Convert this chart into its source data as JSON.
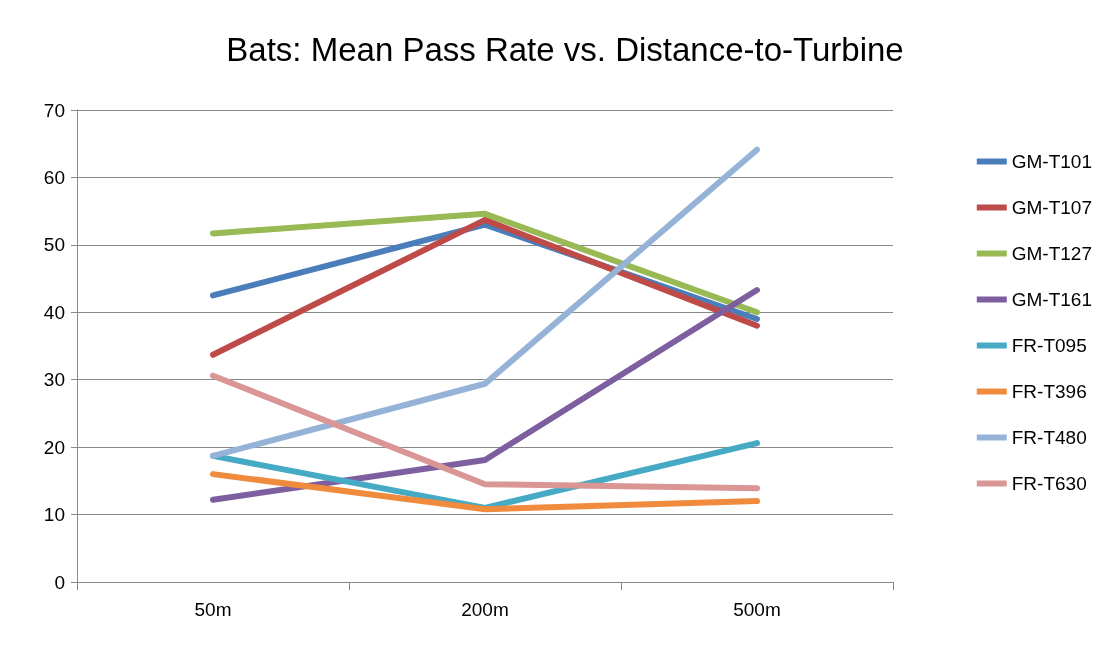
{
  "chart_data": {
    "type": "line",
    "title": "Bats: Mean Pass Rate vs. Distance-to-Turbine",
    "categories": [
      "50m",
      "200m",
      "500m"
    ],
    "series": [
      {
        "name": "GM-T101",
        "color": "#4a7ebb",
        "values": [
          42.5,
          53,
          39
        ]
      },
      {
        "name": "GM-T107",
        "color": "#be4b48",
        "values": [
          33.7,
          53.7,
          38
        ]
      },
      {
        "name": "GM-T127",
        "color": "#98b954",
        "values": [
          51.7,
          54.6,
          40
        ]
      },
      {
        "name": "GM-T161",
        "color": "#7d5fa0",
        "values": [
          12.2,
          18.1,
          43.3
        ]
      },
      {
        "name": "FR-T095",
        "color": "#46aac5",
        "values": [
          18.7,
          11,
          20.6
        ]
      },
      {
        "name": "FR-T396",
        "color": "#f08a3c",
        "values": [
          16,
          10.8,
          12
        ]
      },
      {
        "name": "FR-T480",
        "color": "#95b3d7",
        "values": [
          18.7,
          29.4,
          64.1
        ]
      },
      {
        "name": "FR-T630",
        "color": "#d99694",
        "values": [
          30.6,
          14.5,
          13.9
        ]
      }
    ],
    "ylim": [
      0,
      70
    ],
    "yticks": [
      0,
      10,
      20,
      30,
      40,
      50,
      60,
      70
    ],
    "grid": "y",
    "legend": "right",
    "marker": "none",
    "line_style": "solid"
  }
}
